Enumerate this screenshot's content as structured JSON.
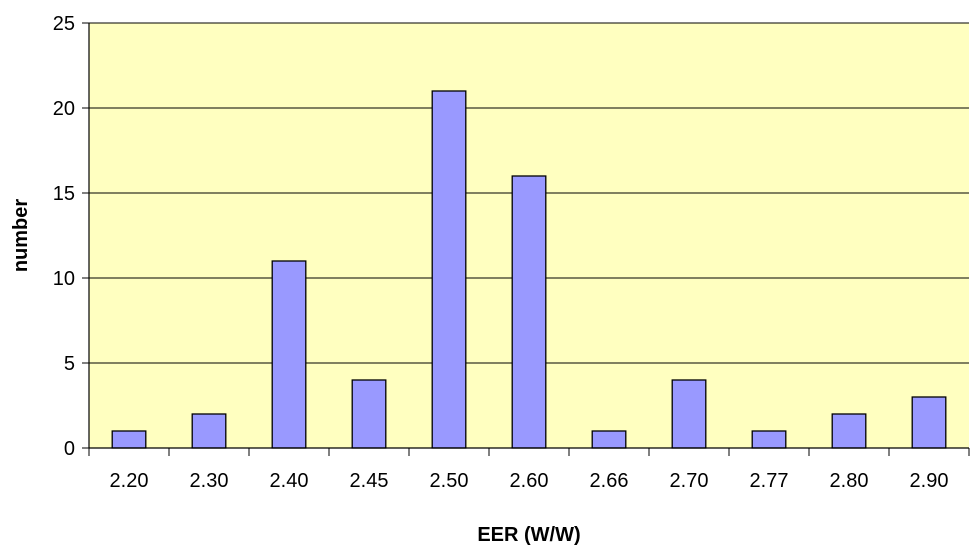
{
  "chart_data": {
    "type": "bar",
    "title": "",
    "xlabel": "EER (W/W)",
    "ylabel": "number",
    "categories": [
      "2.20",
      "2.30",
      "2.40",
      "2.45",
      "2.50",
      "2.60",
      "2.66",
      "2.70",
      "2.77",
      "2.80",
      "2.90"
    ],
    "values": [
      1,
      2,
      11,
      4,
      21,
      16,
      1,
      4,
      1,
      2,
      3
    ],
    "ylim": [
      0,
      25
    ],
    "yticks": [
      "0",
      "5",
      "10",
      "15",
      "20",
      "25"
    ],
    "grid": true,
    "legend": "none",
    "colors": {
      "plot_background": "#ffffc0",
      "bar_fill": "#9999ff",
      "bar_stroke": "#000000",
      "gridline": "#000000",
      "axis": "#000000"
    }
  }
}
